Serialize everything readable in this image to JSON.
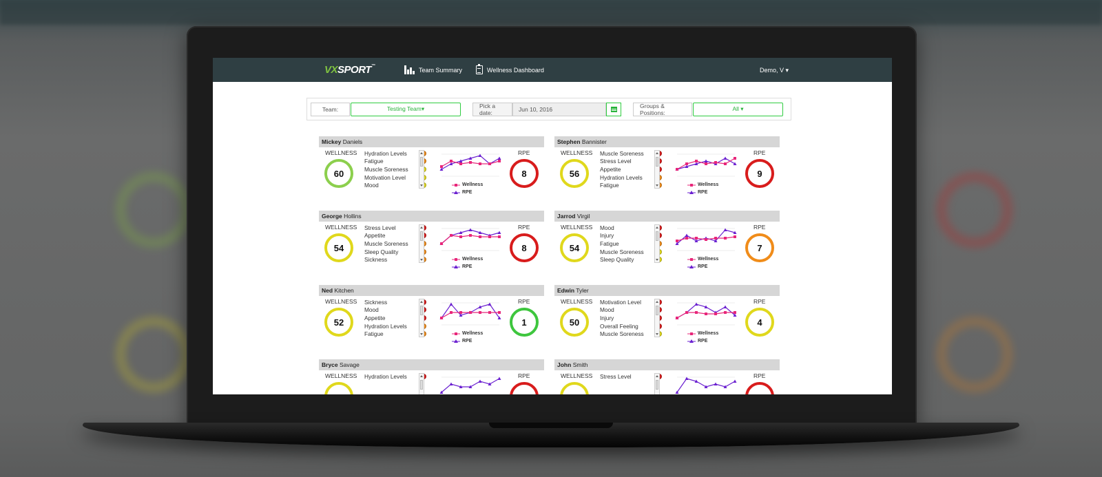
{
  "nav": {
    "logo_vx": "VX",
    "logo_sport": "SPORT",
    "logo_tm": "™",
    "team_summary": "Team Summary",
    "wellness_dashboard": "Wellness Dashboard",
    "user": "Demo, V ▾"
  },
  "filters": {
    "team_label": "Team:",
    "team_value": "Testing Team▾",
    "date_label": "Pick a date:",
    "date_value": "Jun 10, 2016",
    "groups_label": "Groups & Positions:",
    "groups_value": "All ▾"
  },
  "labels": {
    "wellness": "WELLNESS",
    "rpe": "RPE",
    "legend_wellness": "Wellness",
    "legend_rpe": "RPE"
  },
  "colors": {
    "green_ring": "#8ccf4d",
    "yellow": "#e0d81c",
    "red": "#d81c1c",
    "orange": "#f08c1a",
    "bright_green": "#3ec63e",
    "wellness_line": "#e8267a",
    "rpe_line": "#6a1fd0"
  },
  "players": [
    {
      "first": "Mickey",
      "last": "Daniels",
      "wellness": "60",
      "wellness_color": "#8ccf4d",
      "rpe": "8",
      "rpe_color": "#d81c1c",
      "metrics": [
        {
          "name": "Hydration Levels",
          "color": "#f08c1a"
        },
        {
          "name": "Fatigue",
          "color": "#f08c1a"
        },
        {
          "name": "Muscle Soreness",
          "color": "#e0d81c"
        },
        {
          "name": "Motivation Level",
          "color": "#e0d81c"
        },
        {
          "name": "Mood",
          "color": "#e0d81c"
        }
      ],
      "wellness_series": [
        5,
        7,
        6,
        6.5,
        6,
        6,
        7
      ],
      "rpe_series": [
        4,
        6,
        7,
        8,
        9,
        6,
        8
      ]
    },
    {
      "first": "Stephen",
      "last": "Bannister",
      "wellness": "56",
      "wellness_color": "#e0d81c",
      "rpe": "9",
      "rpe_color": "#d81c1c",
      "metrics": [
        {
          "name": "Muscle Soreness",
          "color": "#d81c1c"
        },
        {
          "name": "Stress Level",
          "color": "#d81c1c"
        },
        {
          "name": "Appetite",
          "color": "#d81c1c"
        },
        {
          "name": "Hydration Levels",
          "color": "#f08c1a"
        },
        {
          "name": "Fatigue",
          "color": "#f08c1a"
        }
      ],
      "wellness_series": [
        4,
        6,
        7,
        6,
        6.5,
        6,
        8
      ],
      "rpe_series": [
        4,
        5,
        6,
        7,
        6,
        8,
        6
      ]
    },
    {
      "first": "George",
      "last": "Hollins",
      "wellness": "54",
      "wellness_color": "#e0d81c",
      "rpe": "8",
      "rpe_color": "#d81c1c",
      "metrics": [
        {
          "name": "Stress Level",
          "color": "#d81c1c"
        },
        {
          "name": "Appetite",
          "color": "#d81c1c"
        },
        {
          "name": "Muscle Soreness",
          "color": "#f08c1a"
        },
        {
          "name": "Sleep Quality",
          "color": "#f08c1a"
        },
        {
          "name": "Sickness",
          "color": "#f08c1a"
        }
      ],
      "wellness_series": [
        4,
        7,
        6.5,
        7,
        6.5,
        6.5,
        6.5
      ],
      "rpe_series": [
        4,
        7,
        8,
        9,
        8,
        7,
        8
      ]
    },
    {
      "first": "Jarrod",
      "last": "Virgil",
      "wellness": "54",
      "wellness_color": "#e0d81c",
      "rpe": "7",
      "rpe_color": "#f08c1a",
      "metrics": [
        {
          "name": "Mood",
          "color": "#d81c1c"
        },
        {
          "name": "Injury",
          "color": "#d81c1c"
        },
        {
          "name": "Fatigue",
          "color": "#f08c1a"
        },
        {
          "name": "Muscle Soreness",
          "color": "#e0d81c"
        },
        {
          "name": "Sleep Quality",
          "color": "#e0d81c"
        }
      ],
      "wellness_series": [
        5,
        6,
        6,
        5.5,
        6,
        6,
        6.5
      ],
      "rpe_series": [
        4,
        7,
        5,
        6,
        5,
        9,
        8
      ]
    },
    {
      "first": "Ned",
      "last": "Kitchen",
      "wellness": "52",
      "wellness_color": "#e0d81c",
      "rpe": "1",
      "rpe_color": "#3ec63e",
      "metrics": [
        {
          "name": "Sickness",
          "color": "#d81c1c"
        },
        {
          "name": "Mood",
          "color": "#d81c1c"
        },
        {
          "name": "Appetite",
          "color": "#d81c1c"
        },
        {
          "name": "Hydration Levels",
          "color": "#f08c1a"
        },
        {
          "name": "Fatigue",
          "color": "#f08c1a"
        }
      ],
      "wellness_series": [
        4,
        6,
        6,
        6,
        6,
        6,
        6
      ],
      "rpe_series": [
        4,
        9,
        5,
        6,
        8,
        9,
        4
      ]
    },
    {
      "first": "Edwin",
      "last": "Tyler",
      "wellness": "50",
      "wellness_color": "#e0d81c",
      "rpe": "4",
      "rpe_color": "#e0d81c",
      "metrics": [
        {
          "name": "Motivation Level",
          "color": "#d81c1c"
        },
        {
          "name": "Mood",
          "color": "#d81c1c"
        },
        {
          "name": "Injury",
          "color": "#d81c1c"
        },
        {
          "name": "Overall Feeling",
          "color": "#d81c1c"
        },
        {
          "name": "Muscle Soreness",
          "color": "#e0d81c"
        }
      ],
      "wellness_series": [
        4,
        6,
        6,
        5.5,
        5.5,
        6,
        6
      ],
      "rpe_series": [
        4,
        6,
        9,
        8,
        6,
        8,
        5
      ]
    },
    {
      "first": "Bryce",
      "last": "Savage",
      "wellness": "",
      "wellness_color": "#e0d81c",
      "rpe": "",
      "rpe_color": "#d81c1c",
      "metrics": [
        {
          "name": "Hydration Levels",
          "color": "#d81c1c"
        }
      ],
      "wellness_series": [],
      "rpe_series": [
        4,
        7,
        6,
        6,
        8,
        7,
        9
      ]
    },
    {
      "first": "John",
      "last": "Smith",
      "wellness": "",
      "wellness_color": "#e0d81c",
      "rpe": "",
      "rpe_color": "#d81c1c",
      "metrics": [
        {
          "name": "Stress Level",
          "color": "#d81c1c"
        }
      ],
      "wellness_series": [],
      "rpe_series": [
        4,
        9,
        8,
        6,
        7,
        6,
        8
      ]
    }
  ]
}
